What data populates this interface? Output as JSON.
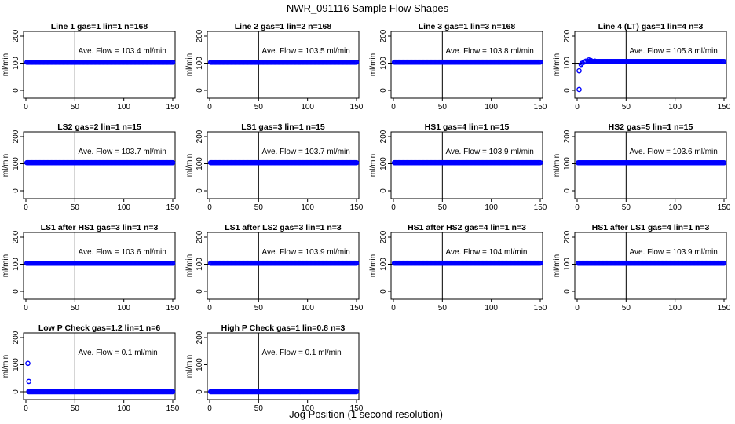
{
  "figure": {
    "title": "NWR_091116  Sample Flow Shapes",
    "xlabel": "Jog Position (1 second resolution)"
  },
  "colors": {
    "points": "#0000ff",
    "axes": "#000000",
    "background": "#ffffff"
  },
  "chart_data": [
    {
      "type": "scatter",
      "title": "Line 1 gas=1 lin=1 n=168",
      "ylabel": "ml/min",
      "annotation": "Ave. Flow =  103.4  ml/min",
      "xlim": [
        0,
        150
      ],
      "ylim": [
        0,
        200
      ],
      "xticks": [
        0,
        50,
        100,
        150
      ],
      "yticks": [
        0,
        100,
        200
      ],
      "vline": 50,
      "hline": 100,
      "series": [
        {
          "x_start": 1,
          "x_end": 150,
          "y": 103.4
        }
      ]
    },
    {
      "type": "scatter",
      "title": "Line 2 gas=1 lin=2 n=168",
      "ylabel": "ml/min",
      "annotation": "Ave. Flow =  103.5  ml/min",
      "xlim": [
        0,
        150
      ],
      "ylim": [
        0,
        200
      ],
      "xticks": [
        0,
        50,
        100,
        150
      ],
      "yticks": [
        0,
        100,
        200
      ],
      "vline": 50,
      "hline": 100,
      "series": [
        {
          "x_start": 1,
          "x_end": 150,
          "y": 103.5
        }
      ]
    },
    {
      "type": "scatter",
      "title": "Line 3 gas=1 lin=3 n=168",
      "ylabel": "ml/min",
      "annotation": "Ave. Flow =  103.8  ml/min",
      "xlim": [
        0,
        150
      ],
      "ylim": [
        0,
        200
      ],
      "xticks": [
        0,
        50,
        100,
        150
      ],
      "yticks": [
        0,
        100,
        200
      ],
      "vline": 50,
      "hline": 100,
      "series": [
        {
          "x_start": 1,
          "x_end": 150,
          "y": 103.8
        }
      ]
    },
    {
      "type": "scatter",
      "title": "Line 4 (LT) gas=1 lin=4 n=3",
      "ylabel": "ml/min",
      "annotation": "Ave. Flow =  105.8  ml/min",
      "xlim": [
        0,
        150
      ],
      "ylim": [
        0,
        200
      ],
      "xticks": [
        0,
        50,
        100,
        150
      ],
      "yticks": [
        0,
        100,
        200
      ],
      "vline": 50,
      "hline": 100,
      "series": [
        {
          "x_start": 11,
          "x_end": 150,
          "y": 106.5
        }
      ],
      "extra_points": [
        [
          2,
          3
        ],
        [
          2,
          72
        ],
        [
          4,
          95
        ],
        [
          5,
          100
        ],
        [
          7,
          104
        ],
        [
          9,
          108
        ],
        [
          12,
          112
        ],
        [
          14,
          110
        ],
        [
          18,
          108
        ]
      ]
    },
    {
      "type": "scatter",
      "title": "LS2 gas=2 lin=1 n=15",
      "ylabel": "ml/min",
      "annotation": "Ave. Flow =  103.7  ml/min",
      "xlim": [
        0,
        150
      ],
      "ylim": [
        0,
        200
      ],
      "xticks": [
        0,
        50,
        100,
        150
      ],
      "yticks": [
        0,
        100,
        200
      ],
      "vline": 50,
      "hline": 100,
      "series": [
        {
          "x_start": 1,
          "x_end": 150,
          "y": 103.7
        }
      ]
    },
    {
      "type": "scatter",
      "title": "LS1 gas=3 lin=1 n=15",
      "ylabel": "ml/min",
      "annotation": "Ave. Flow =  103.7  ml/min",
      "xlim": [
        0,
        150
      ],
      "ylim": [
        0,
        200
      ],
      "xticks": [
        0,
        50,
        100,
        150
      ],
      "yticks": [
        0,
        100,
        200
      ],
      "vline": 50,
      "hline": 100,
      "series": [
        {
          "x_start": 1,
          "x_end": 150,
          "y": 103.7
        }
      ]
    },
    {
      "type": "scatter",
      "title": "HS1 gas=4 lin=1 n=15",
      "ylabel": "ml/min",
      "annotation": "Ave. Flow =  103.9  ml/min",
      "xlim": [
        0,
        150
      ],
      "ylim": [
        0,
        200
      ],
      "xticks": [
        0,
        50,
        100,
        150
      ],
      "yticks": [
        0,
        100,
        200
      ],
      "vline": 50,
      "hline": 100,
      "series": [
        {
          "x_start": 1,
          "x_end": 150,
          "y": 103.9
        }
      ]
    },
    {
      "type": "scatter",
      "title": "HS2 gas=5 lin=1 n=15",
      "ylabel": "ml/min",
      "annotation": "Ave. Flow =  103.6  ml/min",
      "xlim": [
        0,
        150
      ],
      "ylim": [
        0,
        200
      ],
      "xticks": [
        0,
        50,
        100,
        150
      ],
      "yticks": [
        0,
        100,
        200
      ],
      "vline": 50,
      "hline": 100,
      "series": [
        {
          "x_start": 1,
          "x_end": 150,
          "y": 103.6
        }
      ]
    },
    {
      "type": "scatter",
      "title": "LS1 after HS1 gas=3 lin=1 n=3",
      "ylabel": "ml/min",
      "annotation": "Ave. Flow =  103.6  ml/min",
      "xlim": [
        0,
        150
      ],
      "ylim": [
        0,
        200
      ],
      "xticks": [
        0,
        50,
        100,
        150
      ],
      "yticks": [
        0,
        100,
        200
      ],
      "vline": 50,
      "hline": 100,
      "series": [
        {
          "x_start": 1,
          "x_end": 150,
          "y": 103.6
        }
      ]
    },
    {
      "type": "scatter",
      "title": "LS1 after LS2 gas=3 lin=1 n=3",
      "ylabel": "ml/min",
      "annotation": "Ave. Flow =  103.9  ml/min",
      "xlim": [
        0,
        150
      ],
      "ylim": [
        0,
        200
      ],
      "xticks": [
        0,
        50,
        100,
        150
      ],
      "yticks": [
        0,
        100,
        200
      ],
      "vline": 50,
      "hline": 100,
      "series": [
        {
          "x_start": 1,
          "x_end": 150,
          "y": 103.9
        }
      ]
    },
    {
      "type": "scatter",
      "title": "HS1 after HS2 gas=4 lin=1 n=3",
      "ylabel": "ml/min",
      "annotation": "Ave. Flow =  104  ml/min",
      "xlim": [
        0,
        150
      ],
      "ylim": [
        0,
        200
      ],
      "xticks": [
        0,
        50,
        100,
        150
      ],
      "yticks": [
        0,
        100,
        200
      ],
      "vline": 50,
      "hline": 100,
      "series": [
        {
          "x_start": 1,
          "x_end": 150,
          "y": 104.0
        }
      ]
    },
    {
      "type": "scatter",
      "title": "HS1 after LS1 gas=4 lin=1 n=3",
      "ylabel": "ml/min",
      "annotation": "Ave. Flow =  103.9  ml/min",
      "xlim": [
        0,
        150
      ],
      "ylim": [
        0,
        200
      ],
      "xticks": [
        0,
        50,
        100,
        150
      ],
      "yticks": [
        0,
        100,
        200
      ],
      "vline": 50,
      "hline": 100,
      "series": [
        {
          "x_start": 1,
          "x_end": 150,
          "y": 103.9
        }
      ]
    },
    {
      "type": "scatter",
      "title": "Low P Check gas=1.2 lin=1 n=6",
      "ylabel": "ml/min",
      "annotation": "Ave. Flow =  0.1  ml/min",
      "xlim": [
        0,
        150
      ],
      "ylim": [
        0,
        200
      ],
      "xticks": [
        0,
        50,
        100,
        150
      ],
      "yticks": [
        0,
        100,
        200
      ],
      "vline": 50,
      "hline": 0,
      "series": [
        {
          "x_start": 3,
          "x_end": 150,
          "y": 0.1
        }
      ],
      "extra_points": [
        [
          2,
          105
        ],
        [
          3,
          38
        ],
        [
          3,
          2
        ]
      ]
    },
    {
      "type": "scatter",
      "title": "High P Check gas=1 lin=0.8 n=3",
      "ylabel": "ml/min",
      "annotation": "Ave. Flow =  0.1  ml/min",
      "xlim": [
        0,
        150
      ],
      "ylim": [
        0,
        200
      ],
      "xticks": [
        0,
        50,
        100,
        150
      ],
      "yticks": [
        0,
        100,
        200
      ],
      "vline": 50,
      "hline": 0,
      "series": [
        {
          "x_start": 1,
          "x_end": 150,
          "y": 0.1
        }
      ]
    }
  ]
}
